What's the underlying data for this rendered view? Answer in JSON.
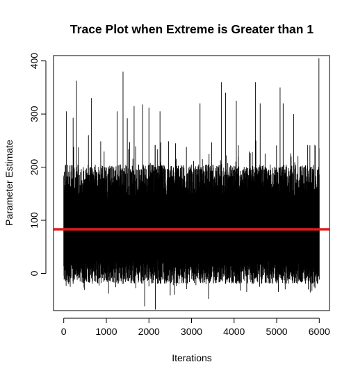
{
  "chart_data": {
    "type": "line",
    "title": "Trace Plot when Extreme is Greater than 1",
    "xlabel": "Iterations",
    "ylabel": "Parameter Estimate",
    "xlim": [
      -240,
      6240
    ],
    "ylim": [
      -70,
      410
    ],
    "x_ticks": [
      0,
      1000,
      2000,
      3000,
      4000,
      5000,
      6000
    ],
    "y_ticks": [
      0,
      100,
      200,
      300,
      400
    ],
    "grid": false,
    "legend": "none",
    "series": [
      {
        "color": "#000000",
        "iterations": 6000,
        "center": 83,
        "typical_range": [
          -20,
          205
        ],
        "min": -68,
        "max": 405,
        "peaks": [
          {
            "x": 50,
            "y": 205
          },
          {
            "x": 60,
            "y": 305
          },
          {
            "x": 220,
            "y": 293
          },
          {
            "x": 300,
            "y": 363
          },
          {
            "x": 650,
            "y": 330
          },
          {
            "x": 1250,
            "y": 305
          },
          {
            "x": 1390,
            "y": 380
          },
          {
            "x": 1490,
            "y": 292
          },
          {
            "x": 1650,
            "y": 315
          },
          {
            "x": 1850,
            "y": 318
          },
          {
            "x": 2000,
            "y": 312
          },
          {
            "x": 2260,
            "y": 305
          },
          {
            "x": 3200,
            "y": 320
          },
          {
            "x": 3700,
            "y": 360
          },
          {
            "x": 3800,
            "y": 340
          },
          {
            "x": 4050,
            "y": 325
          },
          {
            "x": 4500,
            "y": 360
          },
          {
            "x": 4610,
            "y": 320
          },
          {
            "x": 5080,
            "y": 350
          },
          {
            "x": 5150,
            "y": 320
          },
          {
            "x": 5400,
            "y": 300
          },
          {
            "x": 5990,
            "y": 405
          }
        ],
        "troughs": [
          {
            "x": 150,
            "y": -25
          },
          {
            "x": 1050,
            "y": -38
          },
          {
            "x": 1900,
            "y": -62
          },
          {
            "x": 2150,
            "y": -68
          },
          {
            "x": 2600,
            "y": -40
          },
          {
            "x": 3400,
            "y": -48
          },
          {
            "x": 4600,
            "y": -25
          },
          {
            "x": 5200,
            "y": -30
          },
          {
            "x": 5900,
            "y": -28
          }
        ]
      },
      {
        "color": "#e41a1c",
        "type": "hline",
        "y": 83
      }
    ]
  }
}
